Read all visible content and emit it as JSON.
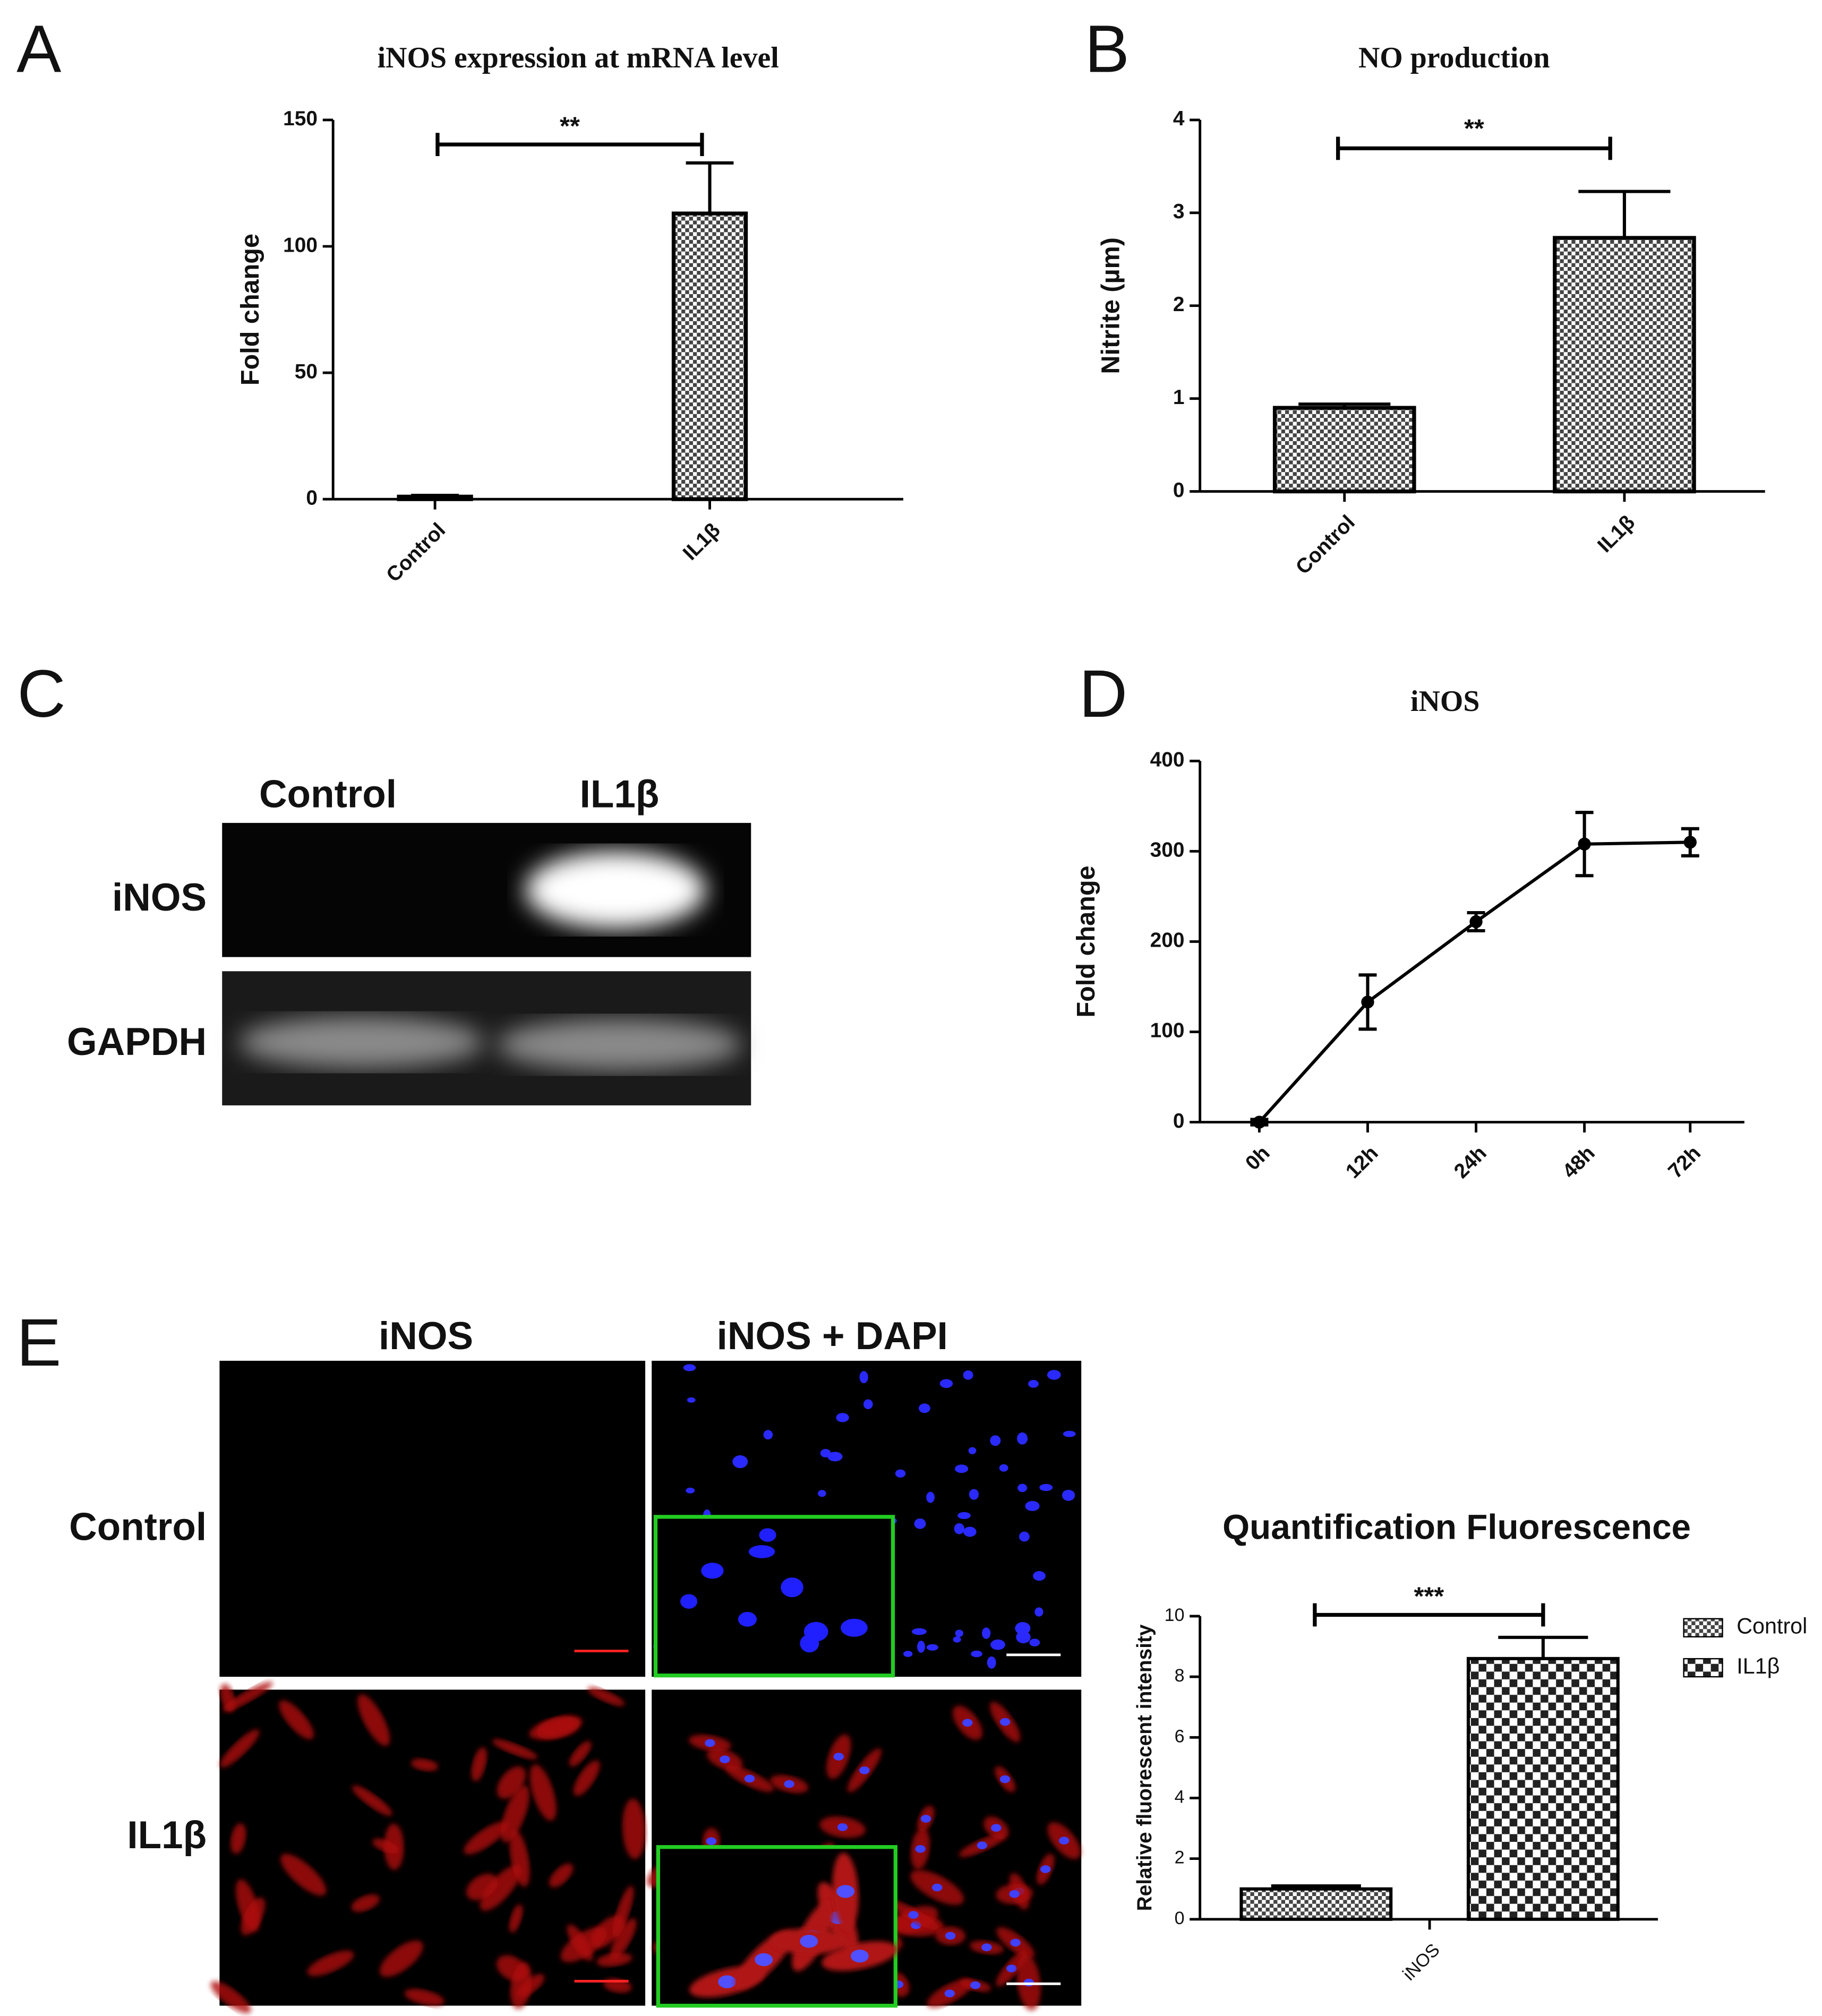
{
  "panels": [
    "A",
    "B",
    "C",
    "D",
    "E"
  ],
  "blot": {
    "columns": [
      "Control",
      "IL1β"
    ],
    "rows": [
      "iNOS",
      "GAPDH"
    ]
  },
  "fluorescence": {
    "columns": [
      "iNOS",
      "iNOS + DAPI"
    ],
    "rows": [
      "Control",
      "IL1β"
    ]
  },
  "chart_data": [
    {
      "type": "bar",
      "title": "iNOS expression at mRNA level",
      "y_label": "Fold change",
      "categories": [
        "Control",
        "IL1β"
      ],
      "values": [
        1,
        113
      ],
      "errors": [
        0.5,
        20
      ],
      "ylim": [
        0,
        150
      ],
      "yticks": [
        0,
        50,
        100,
        150
      ],
      "significance": "**",
      "color": "#000000"
    },
    {
      "type": "bar",
      "title": "NO production",
      "y_label": "Nitrite (µm)",
      "categories": [
        "Control",
        "IL1β"
      ],
      "values": [
        0.9,
        2.73
      ],
      "errors": [
        0.04,
        0.5
      ],
      "ylim": [
        0,
        4
      ],
      "yticks": [
        0,
        1,
        2,
        3,
        4
      ],
      "significance": "**",
      "color": "#000000"
    },
    {
      "type": "line",
      "title": "iNOS",
      "y_label": "Fold change",
      "categories": [
        "0h",
        "12h",
        "24h",
        "48h",
        "72h"
      ],
      "values": [
        0,
        133,
        222,
        308,
        310
      ],
      "errors": [
        3,
        30,
        10,
        35,
        15
      ],
      "ylim": [
        0,
        400
      ],
      "yticks": [
        0,
        100,
        200,
        300,
        400
      ],
      "color": "#000000"
    },
    {
      "type": "bar",
      "title": "Quantification Fluorescence",
      "y_label": "Relative fluorescent intensity",
      "categories": [
        "iNOS"
      ],
      "series": [
        {
          "name": "Control",
          "values": [
            1.0
          ],
          "errors": [
            0.1
          ]
        },
        {
          "name": "IL1β",
          "values": [
            8.6
          ],
          "errors": [
            0.7
          ]
        }
      ],
      "ylim": [
        0,
        10
      ],
      "yticks": [
        0,
        2,
        4,
        6,
        8,
        10
      ],
      "significance": "***",
      "legend": "right",
      "color": "#000000"
    }
  ]
}
